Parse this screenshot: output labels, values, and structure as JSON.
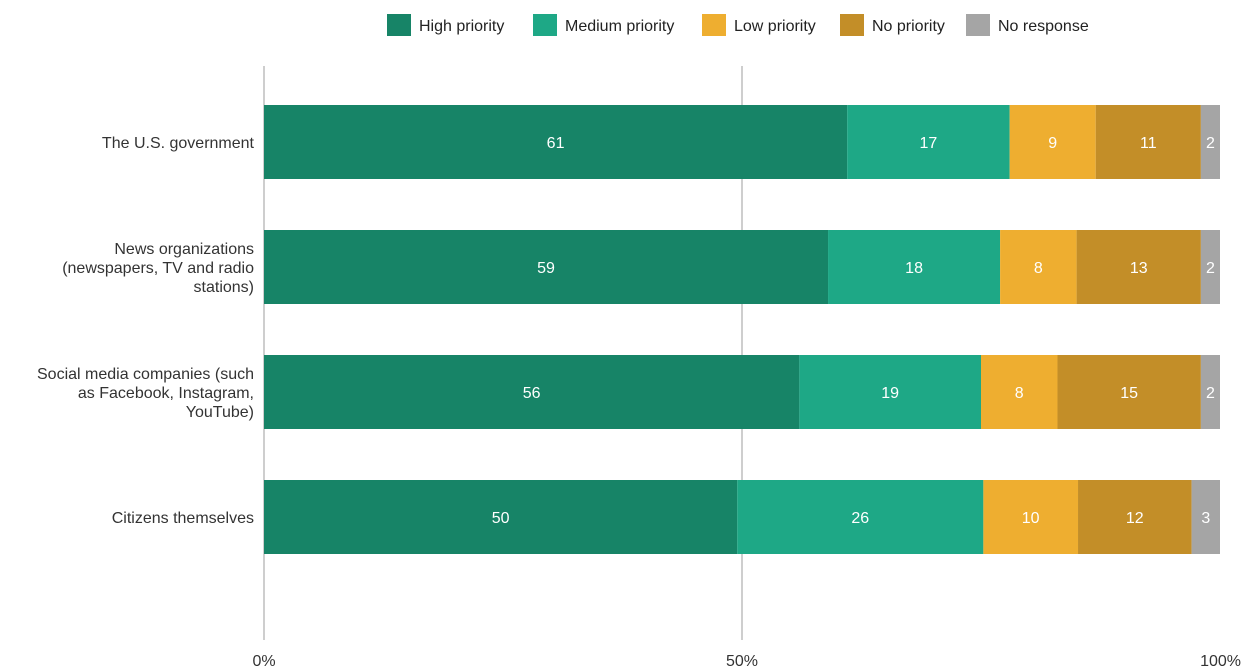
{
  "chart_data": {
    "type": "bar",
    "orientation": "horizontal",
    "stacked": true,
    "categories": [
      "The U.S. government",
      "News organizations (newspapers, TV and radio stations)",
      "Social media companies (such as Facebook, Instagram, YouTube)",
      "Citizens themselves"
    ],
    "series": [
      {
        "name": "High priority",
        "color": "#178467",
        "values": [
          61,
          59,
          56,
          50
        ]
      },
      {
        "name": "Medium priority",
        "color": "#1ea886",
        "values": [
          17,
          18,
          19,
          26
        ]
      },
      {
        "name": "Low priority",
        "color": "#eeae30",
        "values": [
          9,
          8,
          8,
          10
        ]
      },
      {
        "name": "No priority",
        "color": "#c38e28",
        "values": [
          11,
          13,
          15,
          12
        ]
      },
      {
        "name": "No response",
        "color": "#a5a5a5",
        "values": [
          2,
          2,
          2,
          3
        ]
      }
    ],
    "xlim": [
      0,
      100
    ],
    "xticks": [
      "0%",
      "50%",
      "100%"
    ],
    "legend": "top",
    "grid": "vertical at 50%"
  }
}
